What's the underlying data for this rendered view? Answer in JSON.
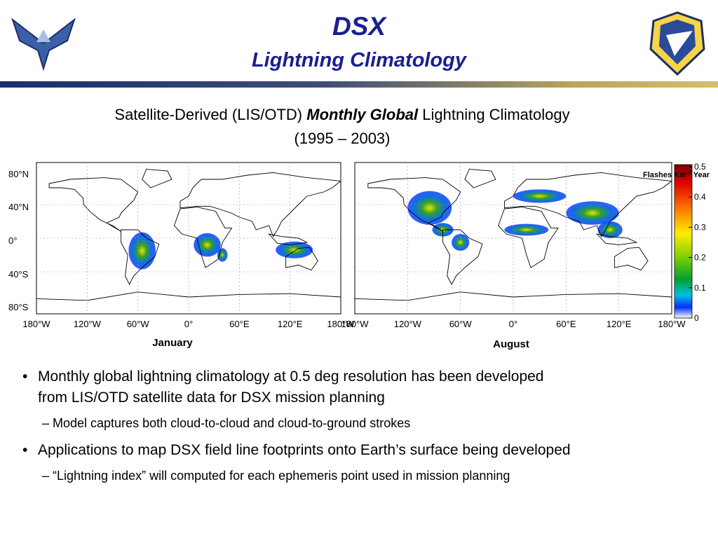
{
  "header": {
    "title": "DSX",
    "subtitle": "Lightning Climatology"
  },
  "figure": {
    "caption": {
      "prefix": "Satellite-Derived (LIS/OTD) ",
      "emphasis": "Monthly Global",
      "suffix": " Lightning Climatology",
      "period": "(1995 – 2003)"
    },
    "maps": [
      {
        "label": "January"
      },
      {
        "label": "August"
      }
    ],
    "lat_labels": [
      "80°N",
      "40°N",
      "0°",
      "40°S",
      "80°S"
    ],
    "lon_labels": [
      "180°W",
      "120°W",
      "60°W",
      "0°",
      "60°E",
      "120°E",
      "180°W"
    ],
    "colorbar": {
      "label": "Flashes Km",
      "exponent": "-2",
      "label_suffix": " Year",
      "ticks": [
        "0.5",
        "0.4",
        "0.3",
        "0.2",
        "0.1",
        "0"
      ]
    }
  },
  "bullets": [
    {
      "text": "Monthly global lightning climatology at 0.5 deg resolution has been developed",
      "continuation": "from LIS/OTD satellite data for DSX mission planning",
      "sub": "– Model captures both cloud-to-cloud and cloud-to-ground strokes"
    },
    {
      "text": "Applications to map DSX field line footprints onto Earth’s surface being developed",
      "sub": "– “Lightning index” will computed for each ephemeris point used in mission planning"
    }
  ]
}
